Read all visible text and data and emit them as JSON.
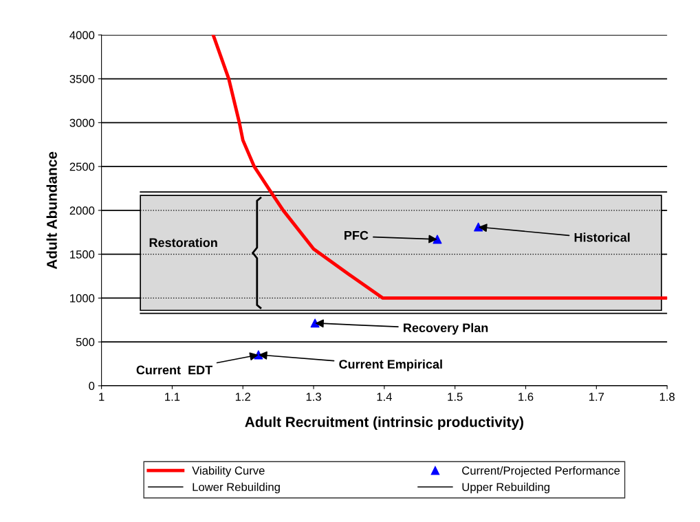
{
  "chart_data": {
    "type": "line",
    "xlabel": "Adult Recruitment (intrinsic productivity)",
    "ylabel": "Adult Abundance",
    "xlim": [
      1,
      1.8
    ],
    "xticks": [
      1,
      1.1,
      1.2,
      1.3,
      1.4,
      1.5,
      1.6,
      1.7,
      1.8
    ],
    "ylim": [
      0,
      4000
    ],
    "yticks": [
      0,
      500,
      1000,
      1500,
      2000,
      2500,
      3000,
      3500,
      4000
    ],
    "grid": "y",
    "legend": "bottom",
    "series": [
      {
        "name": "Viability Curve",
        "color": "#ff0000",
        "marker": "none",
        "line_style": "solid",
        "x": [
          1.158,
          1.18,
          1.195,
          1.2,
          1.216,
          1.242,
          1.257,
          1.3,
          1.35,
          1.398,
          1.8
        ],
        "values": [
          4000,
          3500,
          3000,
          2800,
          2500,
          2180,
          2000,
          1560,
          1270,
          1000,
          1000
        ]
      },
      {
        "name": "Current/Projected Performance",
        "type": "scatter",
        "color": "#0000ff",
        "marker": "triangle",
        "x": [
          1.222,
          1.302,
          1.475,
          1.533
        ],
        "values": [
          353,
          714,
          1670,
          1810
        ]
      },
      {
        "name": "Lower Rebuilding",
        "color": "#000000",
        "marker": "none",
        "line_style": "solid",
        "x": [
          1.055,
          1.8
        ],
        "values": [
          825,
          825
        ]
      },
      {
        "name": "Upper Rebuilding",
        "color": "#000000",
        "marker": "none",
        "line_style": "solid",
        "x": [
          1.055,
          1.8
        ],
        "values": [
          2210,
          2210
        ]
      }
    ],
    "bands": [
      {
        "axis": "y",
        "from": 860,
        "to": 2170,
        "label": "Restoration",
        "color": "#d9d9d9"
      }
    ],
    "annotations": [
      {
        "text": "PFC",
        "x": 1.475,
        "y": 1670
      },
      {
        "text": "Historical",
        "x": 1.533,
        "y": 1810
      },
      {
        "text": "Recovery Plan",
        "x": 1.302,
        "y": 714
      },
      {
        "text": "Current Empirical",
        "x": 1.222,
        "y": 353
      },
      {
        "text": "Current  EDT",
        "x": 1.222,
        "y": 353
      }
    ]
  }
}
